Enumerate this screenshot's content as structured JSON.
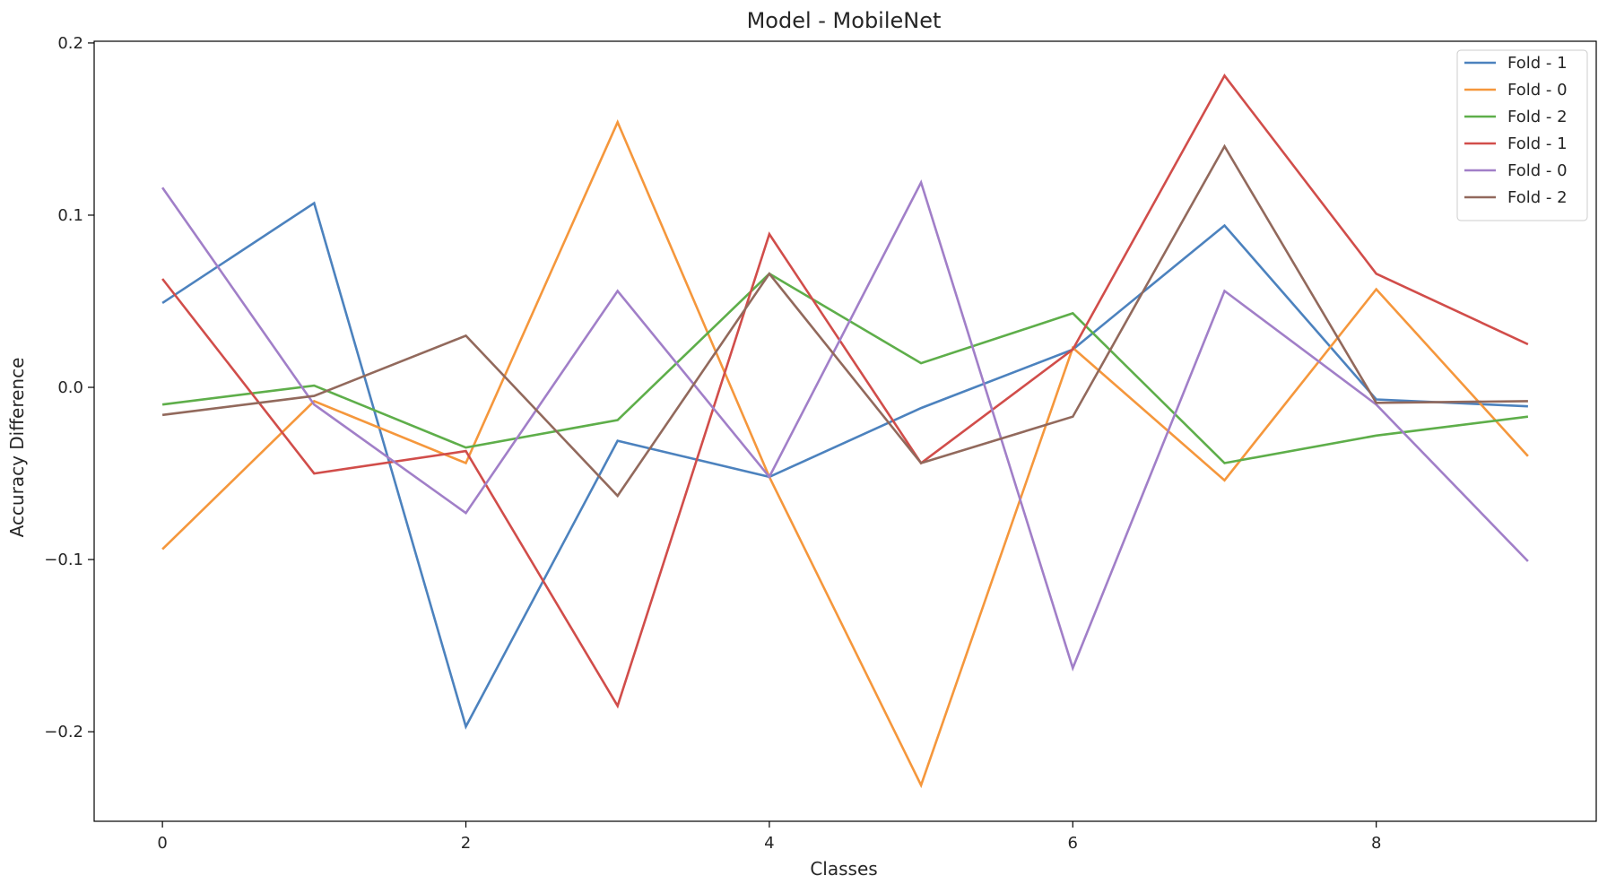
{
  "chart_data": {
    "type": "line",
    "title": "Model - MobileNet",
    "xlabel": "Classes",
    "ylabel": "Accuracy Difference",
    "xlim": [
      -0.45,
      9.45
    ],
    "ylim": [
      -0.252,
      0.201
    ],
    "x": [
      0,
      1,
      2,
      3,
      4,
      5,
      6,
      7,
      8,
      9
    ],
    "xticks": [
      0,
      2,
      4,
      6,
      8
    ],
    "xtick_labels": [
      "0",
      "2",
      "4",
      "6",
      "8"
    ],
    "yticks": [
      0.2,
      0.1,
      0.0,
      -0.1,
      -0.2
    ],
    "ytick_labels": [
      "0.2",
      "0.1",
      "0.0",
      "−0.1",
      "−0.2"
    ],
    "grid": false,
    "legend_position": "top-right",
    "series": [
      {
        "name": "Fold - 1",
        "color": "#4c82be",
        "values": [
          0.049,
          0.107,
          -0.197,
          -0.031,
          -0.052,
          -0.012,
          0.022,
          0.094,
          -0.007,
          -0.011
        ]
      },
      {
        "name": "Fold - 0",
        "color": "#f5973c",
        "values": [
          -0.094,
          -0.008,
          -0.044,
          0.154,
          -0.052,
          -0.231,
          0.023,
          -0.054,
          0.057,
          -0.04
        ]
      },
      {
        "name": "Fold - 2",
        "color": "#5eae4a",
        "values": [
          -0.01,
          0.001,
          -0.035,
          -0.019,
          0.066,
          0.014,
          0.043,
          -0.044,
          -0.028,
          -0.017
        ]
      },
      {
        "name": "Fold - 1",
        "color": "#d14d4a",
        "values": [
          0.063,
          -0.05,
          -0.037,
          -0.185,
          0.089,
          -0.044,
          0.022,
          0.181,
          0.066,
          0.025
        ]
      },
      {
        "name": "Fold - 0",
        "color": "#a17fc8",
        "values": [
          0.116,
          -0.01,
          -0.073,
          0.056,
          -0.052,
          0.119,
          -0.163,
          0.056,
          -0.01,
          -0.101
        ]
      },
      {
        "name": "Fold - 2",
        "color": "#92695c",
        "values": [
          -0.016,
          -0.005,
          0.03,
          -0.063,
          0.066,
          -0.044,
          -0.017,
          0.14,
          -0.009,
          -0.008
        ]
      }
    ]
  }
}
